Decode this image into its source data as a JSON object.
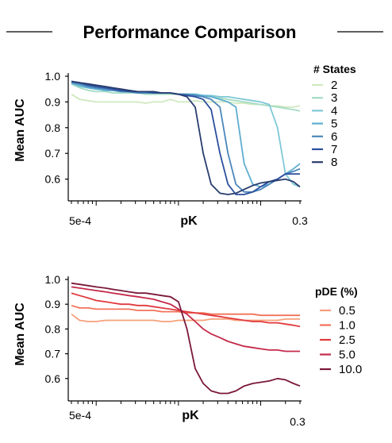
{
  "title": "Performance Comparison",
  "chart_data": [
    {
      "type": "line",
      "ylabel": "Mean AUC",
      "xlabel": "pK",
      "x_tick_labels": [
        "5e-4",
        "0.3"
      ],
      "x_scale": "log",
      "xlim": [
        0.0005,
        0.3
      ],
      "ylim": [
        0.5,
        1.0
      ],
      "y_ticks": [
        "1.0",
        "0.9",
        "0.8",
        "0.7",
        "0.6"
      ],
      "legend_title": "# States",
      "legend_position": "right",
      "x": [
        0.0005,
        0.00063,
        0.0008,
        0.001,
        0.0013,
        0.0016,
        0.002,
        0.0025,
        0.0032,
        0.004,
        0.005,
        0.0063,
        0.008,
        0.01,
        0.0127,
        0.016,
        0.02,
        0.025,
        0.032,
        0.04,
        0.05,
        0.063,
        0.08,
        0.1,
        0.127,
        0.16,
        0.2,
        0.25,
        0.3
      ],
      "series": [
        {
          "name": "2",
          "color": "#cfe9c0",
          "values": [
            0.93,
            0.91,
            0.905,
            0.9,
            0.9,
            0.9,
            0.9,
            0.9,
            0.9,
            0.895,
            0.9,
            0.9,
            0.91,
            0.9,
            0.9,
            0.905,
            0.9,
            0.9,
            0.9,
            0.9,
            0.895,
            0.895,
            0.89,
            0.89,
            0.885,
            0.885,
            0.88,
            0.88,
            0.885
          ]
        },
        {
          "name": "3",
          "color": "#a4dbc4",
          "values": [
            0.97,
            0.955,
            0.945,
            0.94,
            0.94,
            0.935,
            0.935,
            0.935,
            0.935,
            0.93,
            0.93,
            0.93,
            0.93,
            0.93,
            0.925,
            0.925,
            0.92,
            0.92,
            0.915,
            0.91,
            0.905,
            0.9,
            0.895,
            0.89,
            0.885,
            0.88,
            0.875,
            0.87,
            0.865
          ]
        },
        {
          "name": "4",
          "color": "#7fc8d6",
          "values": [
            0.97,
            0.96,
            0.955,
            0.95,
            0.945,
            0.945,
            0.94,
            0.94,
            0.94,
            0.935,
            0.935,
            0.935,
            0.935,
            0.93,
            0.93,
            0.93,
            0.925,
            0.925,
            0.92,
            0.92,
            0.915,
            0.91,
            0.905,
            0.9,
            0.89,
            0.8,
            0.62,
            0.58,
            0.57
          ]
        },
        {
          "name": "5",
          "color": "#5eadd0",
          "values": [
            0.975,
            0.965,
            0.955,
            0.95,
            0.945,
            0.945,
            0.94,
            0.94,
            0.935,
            0.935,
            0.935,
            0.935,
            0.935,
            0.93,
            0.93,
            0.93,
            0.925,
            0.92,
            0.91,
            0.9,
            0.88,
            0.66,
            0.58,
            0.57,
            0.58,
            0.6,
            0.62,
            0.64,
            0.66
          ]
        },
        {
          "name": "6",
          "color": "#4a86bb",
          "values": [
            0.975,
            0.97,
            0.96,
            0.955,
            0.95,
            0.945,
            0.94,
            0.94,
            0.935,
            0.935,
            0.935,
            0.935,
            0.935,
            0.93,
            0.93,
            0.925,
            0.92,
            0.91,
            0.88,
            0.7,
            0.58,
            0.55,
            0.55,
            0.56,
            0.58,
            0.6,
            0.62,
            0.63,
            0.64
          ]
        },
        {
          "name": "7",
          "color": "#2c4f9e",
          "values": [
            0.98,
            0.975,
            0.965,
            0.96,
            0.955,
            0.95,
            0.945,
            0.94,
            0.94,
            0.94,
            0.935,
            0.935,
            0.935,
            0.93,
            0.925,
            0.92,
            0.91,
            0.87,
            0.7,
            0.58,
            0.54,
            0.54,
            0.55,
            0.57,
            0.59,
            0.6,
            0.62,
            0.62,
            0.62
          ]
        },
        {
          "name": "8",
          "color": "#283c6e",
          "values": [
            0.98,
            0.975,
            0.97,
            0.965,
            0.96,
            0.955,
            0.95,
            0.945,
            0.94,
            0.94,
            0.94,
            0.935,
            0.935,
            0.93,
            0.92,
            0.88,
            0.7,
            0.58,
            0.545,
            0.54,
            0.545,
            0.56,
            0.575,
            0.585,
            0.59,
            0.595,
            0.6,
            0.59,
            0.57
          ]
        }
      ]
    },
    {
      "type": "line",
      "ylabel": "Mean AUC",
      "xlabel": "pK",
      "x_tick_labels": [
        "5e-4",
        "0.3"
      ],
      "x_scale": "log",
      "xlim": [
        0.0005,
        0.3
      ],
      "ylim": [
        0.5,
        1.0
      ],
      "y_ticks": [
        "1.0",
        "0.9",
        "0.8",
        "0.7",
        "0.6"
      ],
      "legend_title": "pDE (%)",
      "legend_position": "right",
      "x": [
        0.0005,
        0.00063,
        0.0008,
        0.001,
        0.0013,
        0.0016,
        0.002,
        0.0025,
        0.0032,
        0.004,
        0.005,
        0.0063,
        0.008,
        0.01,
        0.0127,
        0.016,
        0.02,
        0.025,
        0.032,
        0.04,
        0.05,
        0.063,
        0.08,
        0.1,
        0.127,
        0.16,
        0.2,
        0.25,
        0.3
      ],
      "series": [
        {
          "name": "0.5",
          "color": "#f6a07a",
          "values": [
            0.86,
            0.835,
            0.83,
            0.83,
            0.835,
            0.835,
            0.835,
            0.835,
            0.835,
            0.835,
            0.835,
            0.83,
            0.83,
            0.835,
            0.835,
            0.835,
            0.835,
            0.84,
            0.84,
            0.84,
            0.835,
            0.835,
            0.835,
            0.835,
            0.835,
            0.835,
            0.84,
            0.84,
            0.84
          ]
        },
        {
          "name": "1.0",
          "color": "#f27259",
          "values": [
            0.895,
            0.885,
            0.885,
            0.88,
            0.88,
            0.88,
            0.88,
            0.88,
            0.875,
            0.875,
            0.875,
            0.87,
            0.87,
            0.87,
            0.865,
            0.865,
            0.865,
            0.86,
            0.86,
            0.86,
            0.86,
            0.86,
            0.86,
            0.855,
            0.855,
            0.855,
            0.855,
            0.855,
            0.855
          ]
        },
        {
          "name": "2.5",
          "color": "#e03a3e",
          "values": [
            0.945,
            0.935,
            0.925,
            0.915,
            0.91,
            0.905,
            0.9,
            0.9,
            0.895,
            0.895,
            0.89,
            0.885,
            0.88,
            0.875,
            0.87,
            0.865,
            0.86,
            0.855,
            0.85,
            0.845,
            0.84,
            0.835,
            0.83,
            0.83,
            0.825,
            0.825,
            0.82,
            0.815,
            0.81
          ]
        },
        {
          "name": "5.0",
          "color": "#c42a4a",
          "values": [
            0.97,
            0.965,
            0.96,
            0.955,
            0.95,
            0.945,
            0.94,
            0.935,
            0.93,
            0.925,
            0.92,
            0.91,
            0.9,
            0.88,
            0.86,
            0.83,
            0.8,
            0.78,
            0.765,
            0.75,
            0.74,
            0.73,
            0.725,
            0.72,
            0.715,
            0.715,
            0.71,
            0.71,
            0.71
          ]
        },
        {
          "name": "10.0",
          "color": "#7a1838",
          "values": [
            0.985,
            0.98,
            0.975,
            0.97,
            0.965,
            0.96,
            0.955,
            0.95,
            0.945,
            0.945,
            0.94,
            0.935,
            0.93,
            0.91,
            0.8,
            0.64,
            0.58,
            0.55,
            0.54,
            0.54,
            0.55,
            0.57,
            0.58,
            0.585,
            0.59,
            0.6,
            0.595,
            0.58,
            0.57
          ]
        }
      ]
    }
  ]
}
